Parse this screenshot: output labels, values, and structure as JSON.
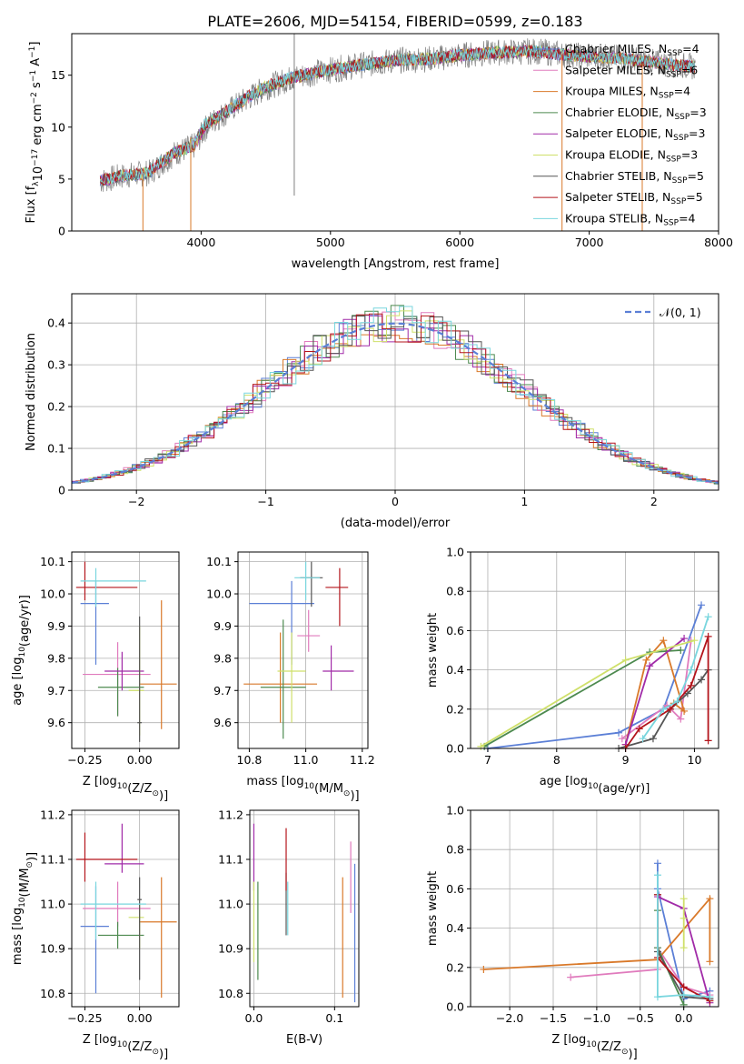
{
  "title": "PLATE=2606, MJD=54154, FIBERID=0599, z=0.183",
  "colors": {
    "Chabrier MILES": "#5b7fd6",
    "Salpeter MILES": "#e07bbd",
    "Kroupa MILES": "#d9792a",
    "Chabrier ELODIE": "#4d8a4f",
    "Salpeter ELODIE": "#a12ba8",
    "Kroupa ELODIE": "#cfe06a",
    "Chabrier STELIB": "#555555",
    "Salpeter STELIB": "#b3141b",
    "Kroupa STELIB": "#79d6de",
    "Data": "#808080"
  },
  "chart_data": [
    {
      "id": "spectrum",
      "type": "line",
      "xlabel": "wavelength [Angstrom, rest frame]",
      "ylabel_parts": [
        "Flux [f",
        "λ",
        "10",
        "−17",
        " erg cm",
        "−2",
        " s",
        "−1",
        " A",
        "−1",
        "]"
      ],
      "xlim": [
        3000,
        8000
      ],
      "ylim": [
        0,
        19
      ],
      "xticks": [
        4000,
        5000,
        6000,
        7000,
        8000
      ],
      "yticks": [
        0,
        5,
        10,
        15
      ],
      "grid": false,
      "legend": "upper-right",
      "legend_entries": [
        {
          "name": "Chabrier MILES",
          "nssp": "4"
        },
        {
          "name": "Salpeter MILES",
          "nssp": "6"
        },
        {
          "name": "Kroupa MILES",
          "nssp": "4"
        },
        {
          "name": "Chabrier ELODIE",
          "nssp": "3"
        },
        {
          "name": "Salpeter ELODIE",
          "nssp": "3"
        },
        {
          "name": "Kroupa ELODIE",
          "nssp": "3"
        },
        {
          "name": "Chabrier STELIB",
          "nssp": "5"
        },
        {
          "name": "Salpeter STELIB",
          "nssp": "5"
        },
        {
          "name": "Kroupa STELIB",
          "nssp": "4"
        }
      ],
      "continuum": {
        "x": [
          3220,
          3400,
          3600,
          3800,
          3950,
          4050,
          4300,
          4500,
          4700,
          4900,
          5200,
          5500,
          5800,
          6000,
          6300,
          6600,
          6800,
          7000,
          7200,
          7400,
          7600,
          7820
        ],
        "y": [
          4.8,
          5.3,
          5.6,
          7.5,
          8.2,
          10.2,
          12.3,
          13.8,
          14.7,
          15.3,
          15.9,
          16.4,
          16.6,
          16.9,
          17.2,
          17.3,
          17.0,
          16.8,
          16.7,
          16.4,
          16.1,
          15.8
        ]
      }
    },
    {
      "id": "residuals",
      "type": "histogram",
      "xlabel": "(data-model)/error",
      "ylabel": "Normed distribution",
      "xlim": [
        -2.5,
        2.5
      ],
      "ylim": [
        0,
        0.47
      ],
      "xticks": [
        -2,
        -1,
        0,
        1,
        2
      ],
      "yticks": [
        0.0,
        0.1,
        0.2,
        0.3,
        0.4
      ],
      "grid": true,
      "legend": "upper-right",
      "legend_entry": "𝒩(0, 1)",
      "normal_curve": {
        "mu": 0,
        "sigma": 1
      }
    },
    {
      "id": "age-vs-Z",
      "type": "errorbar",
      "xlabel_parts": [
        "Z [log",
        "10",
        "(Z/Z",
        "⊙",
        ")]"
      ],
      "ylabel_parts": [
        "age  [log",
        "10",
        "(age/yr)]"
      ],
      "xlim": [
        -0.31,
        0.18
      ],
      "ylim": [
        9.52,
        10.13
      ],
      "xticks": [
        "-0.25",
        "0.00"
      ],
      "xtick_values": [
        -0.25,
        0.0
      ],
      "yticks": [
        "9.6",
        "9.7",
        "9.8",
        "9.9",
        "10.0",
        "10.1"
      ],
      "ytick_values": [
        9.6,
        9.7,
        9.8,
        9.9,
        10.0,
        10.1
      ],
      "grid": true,
      "points": [
        {
          "model": "Chabrier MILES",
          "x": -0.2,
          "y": 9.97,
          "xlo": -0.27,
          "xhi": -0.14,
          "ylo": 9.78,
          "yhi": 10.04
        },
        {
          "model": "Salpeter MILES",
          "x": -0.1,
          "y": 9.75,
          "xlo": -0.26,
          "xhi": 0.05,
          "ylo": 9.62,
          "yhi": 9.85
        },
        {
          "model": "Kroupa MILES",
          "x": 0.1,
          "y": 9.72,
          "xlo": 0.0,
          "xhi": 0.17,
          "ylo": 9.58,
          "yhi": 9.98
        },
        {
          "model": "Chabrier ELODIE",
          "x": -0.1,
          "y": 9.71,
          "xlo": -0.19,
          "xhi": 0.02,
          "ylo": 9.62,
          "yhi": 9.77
        },
        {
          "model": "Salpeter ELODIE",
          "x": -0.08,
          "y": 9.76,
          "xlo": -0.16,
          "xhi": 0.02,
          "ylo": 9.7,
          "yhi": 9.82
        },
        {
          "model": "Kroupa ELODIE",
          "x": 0.0,
          "y": 9.7,
          "xlo": -0.05,
          "xhi": 0.02,
          "ylo": 9.56,
          "yhi": 9.9
        },
        {
          "model": "Chabrier STELIB",
          "x": 0.0,
          "y": 9.6,
          "xlo": -0.01,
          "xhi": 0.01,
          "ylo": 9.54,
          "yhi": 9.93
        },
        {
          "model": "Salpeter STELIB",
          "x": -0.25,
          "y": 10.02,
          "xlo": -0.29,
          "xhi": -0.01,
          "ylo": 9.98,
          "yhi": 10.1
        },
        {
          "model": "Kroupa STELIB",
          "x": -0.2,
          "y": 10.04,
          "xlo": -0.27,
          "xhi": 0.03,
          "ylo": 9.96,
          "yhi": 10.08
        }
      ]
    },
    {
      "id": "age-vs-mass",
      "type": "errorbar",
      "xlabel_parts": [
        "mass [log",
        "10",
        "(M/M",
        "⊙",
        ")]"
      ],
      "xlim": [
        10.76,
        11.22
      ],
      "ylim": [
        9.52,
        10.13
      ],
      "xticks": [
        "10.8",
        "11.0",
        "11.2"
      ],
      "xtick_values": [
        10.8,
        11.0,
        11.2
      ],
      "yticks": [
        "9.6",
        "9.7",
        "9.8",
        "9.9",
        "10.0",
        "10.1"
      ],
      "ytick_values": [
        9.6,
        9.7,
        9.8,
        9.9,
        10.0,
        10.1
      ],
      "grid": true,
      "points": [
        {
          "model": "Chabrier MILES",
          "x": 10.95,
          "y": 9.97,
          "xlo": 10.8,
          "xhi": 11.03,
          "ylo": 9.78,
          "yhi": 10.04
        },
        {
          "model": "Salpeter MILES",
          "x": 11.01,
          "y": 9.87,
          "xlo": 10.97,
          "xhi": 11.05,
          "ylo": 9.82,
          "yhi": 9.95
        },
        {
          "model": "Kroupa MILES",
          "x": 10.91,
          "y": 9.72,
          "xlo": 10.78,
          "xhi": 11.04,
          "ylo": 9.6,
          "yhi": 9.88
        },
        {
          "model": "Chabrier ELODIE",
          "x": 10.92,
          "y": 9.71,
          "xlo": 10.84,
          "xhi": 11.0,
          "ylo": 9.55,
          "yhi": 9.92
        },
        {
          "model": "Salpeter ELODIE",
          "x": 11.09,
          "y": 9.76,
          "xlo": 11.06,
          "xhi": 11.17,
          "ylo": 9.7,
          "yhi": 9.84
        },
        {
          "model": "Kroupa ELODIE",
          "x": 10.95,
          "y": 9.76,
          "xlo": 10.9,
          "xhi": 11.0,
          "ylo": 9.6,
          "yhi": 9.88
        },
        {
          "model": "Chabrier STELIB",
          "x": 11.02,
          "y": 10.05,
          "xlo": 10.98,
          "xhi": 11.06,
          "ylo": 9.96,
          "yhi": 10.1
        },
        {
          "model": "Salpeter STELIB",
          "x": 11.12,
          "y": 10.02,
          "xlo": 11.07,
          "xhi": 11.15,
          "ylo": 9.9,
          "yhi": 10.08
        },
        {
          "model": "Kroupa STELIB",
          "x": 11.0,
          "y": 10.05,
          "xlo": 10.96,
          "xhi": 11.05,
          "ylo": 9.98,
          "yhi": 10.1
        }
      ]
    },
    {
      "id": "weight-vs-age",
      "type": "line",
      "xlabel_parts": [
        "age  [log",
        "10",
        "(age/yr)]"
      ],
      "ylabel": "mass weight",
      "xlim": [
        6.75,
        10.35
      ],
      "ylim": [
        0,
        1
      ],
      "xticks": [
        "7",
        "8",
        "9",
        "10"
      ],
      "xtick_values": [
        7,
        8,
        9,
        10
      ],
      "yticks": [
        "0.0",
        "0.2",
        "0.4",
        "0.6",
        "0.8",
        "1.0"
      ],
      "ytick_values": [
        0,
        0.2,
        0.4,
        0.6,
        0.8,
        1.0
      ],
      "grid": true,
      "series": [
        {
          "model": "Chabrier MILES",
          "x": [
            7.0,
            8.9,
            9.55,
            10.1
          ],
          "y": [
            0.0,
            0.08,
            0.2,
            0.73
          ]
        },
        {
          "model": "Salpeter MILES",
          "x": [
            8.95,
            9.6,
            9.8,
            9.95
          ],
          "y": [
            0.05,
            0.22,
            0.15,
            0.55
          ]
        },
        {
          "model": "Kroupa MILES",
          "x": [
            9.0,
            9.3,
            9.55,
            9.85,
            9.7
          ],
          "y": [
            0.02,
            0.45,
            0.55,
            0.19,
            0.23
          ]
        },
        {
          "model": "Chabrier ELODIE",
          "x": [
            6.95,
            9.35,
            9.8
          ],
          "y": [
            0.01,
            0.49,
            0.5
          ]
        },
        {
          "model": "Salpeter ELODIE",
          "x": [
            9.0,
            9.35,
            9.85
          ],
          "y": [
            0.02,
            0.42,
            0.56
          ]
        },
        {
          "model": "Kroupa ELODIE",
          "x": [
            6.9,
            9.0,
            10.0
          ],
          "y": [
            0.01,
            0.45,
            0.55
          ]
        },
        {
          "model": "Chabrier STELIB",
          "x": [
            8.9,
            9.4,
            9.65,
            9.9,
            10.1,
            10.2
          ],
          "y": [
            0.0,
            0.05,
            0.2,
            0.28,
            0.35,
            0.4
          ]
        },
        {
          "model": "Salpeter STELIB",
          "x": [
            9.0,
            9.2,
            9.65,
            9.95,
            10.2,
            10.2
          ],
          "y": [
            0.0,
            0.1,
            0.2,
            0.32,
            0.57,
            0.04
          ]
        },
        {
          "model": "Kroupa STELIB",
          "x": [
            9.25,
            9.55,
            9.75,
            9.95,
            10.2
          ],
          "y": [
            0.05,
            0.2,
            0.24,
            0.4,
            0.67
          ]
        }
      ]
    },
    {
      "id": "mass-vs-Z",
      "type": "errorbar",
      "xlabel_parts": [
        "Z [log",
        "10",
        "(Z/Z",
        "⊙",
        ")]"
      ],
      "ylabel_parts": [
        "mass [log",
        "10",
        "(M/M",
        "⊙",
        ")]"
      ],
      "xlim": [
        -0.31,
        0.18
      ],
      "ylim": [
        10.77,
        11.21
      ],
      "xticks": [
        "-0.25",
        "0.00"
      ],
      "xtick_values": [
        -0.25,
        0.0
      ],
      "yticks": [
        "10.8",
        "10.9",
        "11.0",
        "11.1",
        "11.2"
      ],
      "ytick_values": [
        10.8,
        10.9,
        11.0,
        11.1,
        11.2
      ],
      "grid": true,
      "points": [
        {
          "model": "Chabrier MILES",
          "x": -0.2,
          "y": 10.95,
          "xlo": -0.27,
          "xhi": -0.14,
          "ylo": 10.8,
          "yhi": 11.04
        },
        {
          "model": "Salpeter MILES",
          "x": -0.1,
          "y": 10.99,
          "xlo": -0.26,
          "xhi": 0.05,
          "ylo": 10.95,
          "yhi": 11.05
        },
        {
          "model": "Kroupa MILES",
          "x": 0.1,
          "y": 10.96,
          "xlo": 0.0,
          "xhi": 0.17,
          "ylo": 10.79,
          "yhi": 11.06
        },
        {
          "model": "Chabrier ELODIE",
          "x": -0.1,
          "y": 10.93,
          "xlo": -0.19,
          "xhi": 0.02,
          "ylo": 10.9,
          "yhi": 10.96
        },
        {
          "model": "Salpeter ELODIE",
          "x": -0.08,
          "y": 11.09,
          "xlo": -0.16,
          "xhi": 0.02,
          "ylo": 11.07,
          "yhi": 11.18
        },
        {
          "model": "Kroupa ELODIE",
          "x": 0.0,
          "y": 10.97,
          "xlo": -0.05,
          "xhi": 0.02,
          "ylo": 10.9,
          "yhi": 11.0
        },
        {
          "model": "Chabrier STELIB",
          "x": 0.0,
          "y": 11.01,
          "xlo": -0.01,
          "xhi": 0.01,
          "ylo": 10.83,
          "yhi": 11.06
        },
        {
          "model": "Salpeter STELIB",
          "x": -0.25,
          "y": 11.1,
          "xlo": -0.29,
          "xhi": -0.01,
          "ylo": 11.05,
          "yhi": 11.16
        },
        {
          "model": "Kroupa STELIB",
          "x": -0.2,
          "y": 11.0,
          "xlo": -0.27,
          "xhi": 0.03,
          "ylo": 10.92,
          "yhi": 11.05
        }
      ]
    },
    {
      "id": "mass-vs-EBV",
      "type": "errorbar",
      "xlabel": "E(B-V)",
      "xlim": [
        -0.005,
        0.13
      ],
      "ylim": [
        10.77,
        11.21
      ],
      "xticks": [
        "0.0",
        "0.1"
      ],
      "xtick_values": [
        0.0,
        0.1
      ],
      "yticks": [
        "10.8",
        "10.9",
        "11.0",
        "11.1",
        "11.2"
      ],
      "ytick_values": [
        10.8,
        10.9,
        11.0,
        11.1,
        11.2
      ],
      "grid": true,
      "points": [
        {
          "model": "Chabrier MILES",
          "x": 0.125,
          "y": 10.95,
          "ylo": 10.78,
          "yhi": 11.09
        },
        {
          "model": "Salpeter MILES",
          "x": 0.12,
          "y": 11.05,
          "ylo": 10.98,
          "yhi": 11.14
        },
        {
          "model": "Kroupa MILES",
          "x": 0.11,
          "y": 10.95,
          "ylo": 10.79,
          "yhi": 11.06
        },
        {
          "model": "Chabrier ELODIE",
          "x": 0.005,
          "y": 10.95,
          "ylo": 10.83,
          "yhi": 11.05
        },
        {
          "model": "Salpeter ELODIE",
          "x": 0.0,
          "y": 11.1,
          "ylo": 11.03,
          "yhi": 11.18
        },
        {
          "model": "Kroupa ELODIE",
          "x": 0.0,
          "y": 10.96,
          "ylo": 10.87,
          "yhi": 11.05
        },
        {
          "model": "Chabrier STELIB",
          "x": 0.04,
          "y": 11.0,
          "ylo": 10.93,
          "yhi": 11.07
        },
        {
          "model": "Salpeter STELIB",
          "x": 0.04,
          "y": 11.1,
          "ylo": 11.03,
          "yhi": 11.17
        },
        {
          "model": "Kroupa STELIB",
          "x": 0.042,
          "y": 10.98,
          "ylo": 10.93,
          "yhi": 11.05
        }
      ]
    },
    {
      "id": "weight-vs-Z",
      "type": "line",
      "xlabel_parts": [
        "Z [log",
        "10",
        "(Z/Z",
        "⊙",
        ")]"
      ],
      "ylabel": "mass weight",
      "xlim": [
        -2.45,
        0.4
      ],
      "ylim": [
        0,
        1
      ],
      "xticks": [
        "−2.0",
        "−1.5",
        "−1.0",
        "−0.5",
        "0.0"
      ],
      "xtick_values": [
        -2.0,
        -1.5,
        -1.0,
        -0.5,
        0.0
      ],
      "yticks": [
        "0.0",
        "0.2",
        "0.4",
        "0.6",
        "0.8",
        "1.0"
      ],
      "ytick_values": [
        0,
        0.2,
        0.4,
        0.6,
        0.8,
        1.0
      ],
      "grid": true,
      "series": [
        {
          "model": "Chabrier MILES",
          "x": [
            -0.3,
            -0.3,
            0.0,
            0.3
          ],
          "y": [
            0.73,
            0.6,
            0.04,
            0.08
          ]
        },
        {
          "model": "Salpeter MILES",
          "x": [
            -1.3,
            -0.3,
            -0.3,
            0.0,
            0.3
          ],
          "y": [
            0.15,
            0.19,
            0.3,
            0.1,
            0.06
          ]
        },
        {
          "model": "Kroupa MILES",
          "x": [
            -2.3,
            -0.3,
            0.3,
            0.3
          ],
          "y": [
            0.19,
            0.24,
            0.55,
            0.23
          ]
        },
        {
          "model": "Chabrier ELODIE",
          "x": [
            -0.3,
            -0.3,
            0.0
          ],
          "y": [
            0.49,
            0.3,
            0.01
          ]
        },
        {
          "model": "Salpeter ELODIE",
          "x": [
            -0.3,
            0.0,
            0.3
          ],
          "y": [
            0.56,
            0.5,
            0.02
          ]
        },
        {
          "model": "Kroupa ELODIE",
          "x": [
            0.0,
            0.0,
            0.0
          ],
          "y": [
            0.55,
            0.45,
            0.3
          ]
        },
        {
          "model": "Chabrier STELIB",
          "x": [
            -0.3,
            -0.3,
            0.0,
            0.3
          ],
          "y": [
            0.57,
            0.28,
            0.05,
            0.04
          ]
        },
        {
          "model": "Salpeter STELIB",
          "x": [
            -0.3,
            -0.3,
            0.0,
            0.3
          ],
          "y": [
            0.57,
            0.25,
            0.1,
            0.03
          ]
        },
        {
          "model": "Kroupa STELIB",
          "x": [
            -0.3,
            -0.3,
            0.0,
            0.3
          ],
          "y": [
            0.67,
            0.05,
            0.06,
            0.05
          ]
        }
      ]
    }
  ]
}
